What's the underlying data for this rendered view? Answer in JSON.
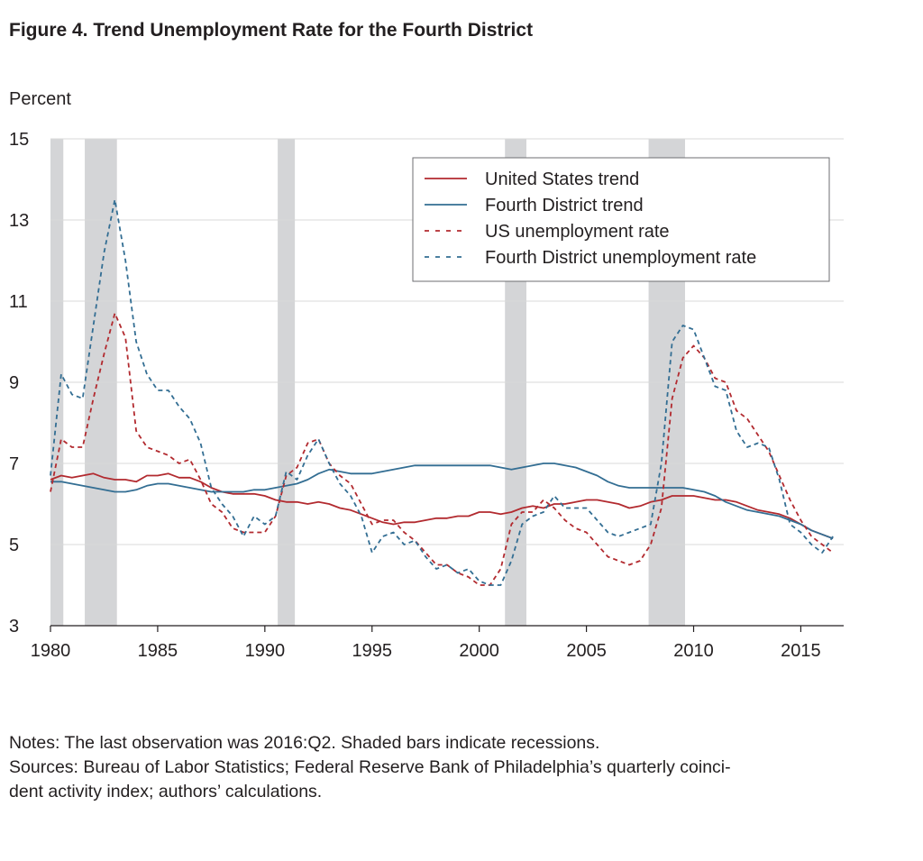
{
  "title": "Figure 4. Trend Unemployment Rate for the Fourth District",
  "notes": [
    "Notes: The last observation was 2016:Q2. Shaded bars indicate recessions.",
    "Sources: Bureau of Labor Statistics; Federal Reserve Bank of Philadelphia’s quarterly coinci-",
    "dent activity index; authors’ calculations."
  ],
  "colors": {
    "us": "#b22a2f",
    "fd": "#336e93",
    "recession": "#d4d5d7",
    "grid": "#d9d9d9"
  },
  "chart_data": {
    "type": "line",
    "ylabel": "Percent",
    "xlim": [
      1980,
      2017
    ],
    "ylim": [
      3,
      15
    ],
    "x_ticks": [
      1980,
      1985,
      1990,
      1995,
      2000,
      2005,
      2010,
      2015
    ],
    "y_ticks": [
      3,
      5,
      7,
      9,
      11,
      13,
      15
    ],
    "grid": true,
    "legend_position": "top-right",
    "recessions": [
      [
        1980.0,
        1980.6
      ],
      [
        1981.6,
        1983.1
      ],
      [
        1990.6,
        1991.4
      ],
      [
        2001.2,
        2002.2
      ],
      [
        2007.9,
        2009.6
      ]
    ],
    "series": [
      {
        "name": "United States trend",
        "style": "solid",
        "color": "us",
        "x": [
          1980.0,
          1980.5,
          1981.0,
          1981.5,
          1982.0,
          1982.5,
          1983.0,
          1983.5,
          1984.0,
          1984.5,
          1985.0,
          1985.5,
          1986.0,
          1986.5,
          1987.0,
          1987.5,
          1988.0,
          1988.5,
          1989.0,
          1989.5,
          1990.0,
          1990.5,
          1991.0,
          1991.5,
          1992.0,
          1992.5,
          1993.0,
          1993.5,
          1994.0,
          1994.5,
          1995.0,
          1995.5,
          1996.0,
          1996.5,
          1997.0,
          1997.5,
          1998.0,
          1998.5,
          1999.0,
          1999.5,
          2000.0,
          2000.5,
          2001.0,
          2001.5,
          2002.0,
          2002.5,
          2003.0,
          2003.5,
          2004.0,
          2004.5,
          2005.0,
          2005.5,
          2006.0,
          2006.5,
          2007.0,
          2007.5,
          2008.0,
          2008.5,
          2009.0,
          2009.5,
          2010.0,
          2010.5,
          2011.0,
          2011.5,
          2012.0,
          2012.5,
          2013.0,
          2013.5,
          2014.0,
          2014.5,
          2015.0,
          2015.5,
          2016.0,
          2016.5
        ],
        "y": [
          6.6,
          6.7,
          6.65,
          6.7,
          6.75,
          6.65,
          6.6,
          6.6,
          6.55,
          6.7,
          6.7,
          6.75,
          6.65,
          6.65,
          6.55,
          6.4,
          6.3,
          6.25,
          6.25,
          6.25,
          6.2,
          6.1,
          6.05,
          6.05,
          6.0,
          6.05,
          6.0,
          5.9,
          5.85,
          5.75,
          5.65,
          5.55,
          5.5,
          5.55,
          5.55,
          5.6,
          5.65,
          5.65,
          5.7,
          5.7,
          5.8,
          5.8,
          5.75,
          5.8,
          5.9,
          5.95,
          5.9,
          6.0,
          6.0,
          6.05,
          6.1,
          6.1,
          6.05,
          6.0,
          5.9,
          5.95,
          6.05,
          6.1,
          6.2,
          6.2,
          6.2,
          6.15,
          6.1,
          6.1,
          6.05,
          5.95,
          5.85,
          5.8,
          5.75,
          5.65,
          5.5,
          5.35,
          5.25,
          5.15
        ]
      },
      {
        "name": "Fourth District trend",
        "style": "solid",
        "color": "fd",
        "x": [
          1980.0,
          1980.5,
          1981.0,
          1981.5,
          1982.0,
          1982.5,
          1983.0,
          1983.5,
          1984.0,
          1984.5,
          1985.0,
          1985.5,
          1986.0,
          1986.5,
          1987.0,
          1987.5,
          1988.0,
          1988.5,
          1989.0,
          1989.5,
          1990.0,
          1990.5,
          1991.0,
          1991.5,
          1992.0,
          1992.5,
          1993.0,
          1993.5,
          1994.0,
          1994.5,
          1995.0,
          1995.5,
          1996.0,
          1996.5,
          1997.0,
          1997.5,
          1998.0,
          1998.5,
          1999.0,
          1999.5,
          2000.0,
          2000.5,
          2001.0,
          2001.5,
          2002.0,
          2002.5,
          2003.0,
          2003.5,
          2004.0,
          2004.5,
          2005.0,
          2005.5,
          2006.0,
          2006.5,
          2007.0,
          2007.5,
          2008.0,
          2008.5,
          2009.0,
          2009.5,
          2010.0,
          2010.5,
          2011.0,
          2011.5,
          2012.0,
          2012.5,
          2013.0,
          2013.5,
          2014.0,
          2014.5,
          2015.0,
          2015.5,
          2016.0,
          2016.5
        ],
        "y": [
          6.55,
          6.55,
          6.5,
          6.45,
          6.4,
          6.35,
          6.3,
          6.3,
          6.35,
          6.45,
          6.5,
          6.5,
          6.45,
          6.4,
          6.35,
          6.3,
          6.3,
          6.3,
          6.3,
          6.35,
          6.35,
          6.4,
          6.45,
          6.5,
          6.6,
          6.75,
          6.85,
          6.8,
          6.75,
          6.75,
          6.75,
          6.8,
          6.85,
          6.9,
          6.95,
          6.95,
          6.95,
          6.95,
          6.95,
          6.95,
          6.95,
          6.95,
          6.9,
          6.85,
          6.9,
          6.95,
          7.0,
          7.0,
          6.95,
          6.9,
          6.8,
          6.7,
          6.55,
          6.45,
          6.4,
          6.4,
          6.4,
          6.4,
          6.4,
          6.4,
          6.35,
          6.3,
          6.2,
          6.05,
          5.95,
          5.85,
          5.8,
          5.75,
          5.7,
          5.6,
          5.5,
          5.35,
          5.25,
          5.15
        ]
      },
      {
        "name": "US unemployment rate",
        "style": "dashed",
        "color": "us",
        "x": [
          1980.0,
          1980.5,
          1981.0,
          1981.5,
          1982.0,
          1982.5,
          1983.0,
          1983.5,
          1984.0,
          1984.5,
          1985.0,
          1985.5,
          1986.0,
          1986.5,
          1987.0,
          1987.5,
          1988.0,
          1988.5,
          1989.0,
          1989.5,
          1990.0,
          1990.5,
          1991.0,
          1991.5,
          1992.0,
          1992.5,
          1993.0,
          1993.5,
          1994.0,
          1994.5,
          1995.0,
          1995.5,
          1996.0,
          1996.5,
          1997.0,
          1997.5,
          1998.0,
          1998.5,
          1999.0,
          1999.5,
          2000.0,
          2000.5,
          2001.0,
          2001.5,
          2002.0,
          2002.5,
          2003.0,
          2003.5,
          2004.0,
          2004.5,
          2005.0,
          2005.5,
          2006.0,
          2006.5,
          2007.0,
          2007.5,
          2008.0,
          2008.5,
          2009.0,
          2009.5,
          2010.0,
          2010.5,
          2011.0,
          2011.5,
          2012.0,
          2012.5,
          2013.0,
          2013.5,
          2014.0,
          2014.5,
          2015.0,
          2015.5,
          2016.0,
          2016.5
        ],
        "y": [
          6.3,
          7.6,
          7.4,
          7.4,
          8.6,
          9.7,
          10.7,
          10.1,
          7.8,
          7.4,
          7.3,
          7.2,
          7.0,
          7.1,
          6.6,
          6.0,
          5.8,
          5.4,
          5.3,
          5.3,
          5.3,
          5.7,
          6.7,
          6.9,
          7.5,
          7.6,
          7.0,
          6.7,
          6.5,
          6.0,
          5.5,
          5.6,
          5.6,
          5.3,
          5.1,
          4.8,
          4.5,
          4.5,
          4.3,
          4.2,
          4.0,
          4.0,
          4.4,
          5.5,
          5.8,
          5.8,
          6.1,
          5.9,
          5.6,
          5.4,
          5.3,
          5.0,
          4.7,
          4.6,
          4.5,
          4.6,
          5.0,
          5.9,
          8.6,
          9.6,
          9.9,
          9.6,
          9.1,
          9.0,
          8.3,
          8.1,
          7.7,
          7.3,
          6.7,
          6.1,
          5.6,
          5.2,
          5.0,
          4.8
        ]
      },
      {
        "name": "Fourth District unemployment rate",
        "style": "dashed",
        "color": "fd",
        "x": [
          1980.0,
          1980.5,
          1981.0,
          1981.5,
          1982.0,
          1982.5,
          1983.0,
          1983.5,
          1984.0,
          1984.5,
          1985.0,
          1985.5,
          1986.0,
          1986.5,
          1987.0,
          1987.5,
          1988.0,
          1988.5,
          1989.0,
          1989.5,
          1990.0,
          1990.5,
          1991.0,
          1991.5,
          1992.0,
          1992.5,
          1993.0,
          1993.5,
          1994.0,
          1994.5,
          1995.0,
          1995.5,
          1996.0,
          1996.5,
          1997.0,
          1997.5,
          1998.0,
          1998.5,
          1999.0,
          1999.5,
          2000.0,
          2000.5,
          2001.0,
          2001.5,
          2002.0,
          2002.5,
          2003.0,
          2003.5,
          2004.0,
          2004.5,
          2005.0,
          2005.5,
          2006.0,
          2006.5,
          2007.0,
          2007.5,
          2008.0,
          2008.5,
          2009.0,
          2009.5,
          2010.0,
          2010.5,
          2011.0,
          2011.5,
          2012.0,
          2012.5,
          2013.0,
          2013.5,
          2014.0,
          2014.5,
          2015.0,
          2015.5,
          2016.0,
          2016.5
        ],
        "y": [
          6.7,
          9.2,
          8.7,
          8.6,
          10.4,
          12.2,
          13.5,
          12.0,
          10.0,
          9.2,
          8.8,
          8.8,
          8.4,
          8.1,
          7.5,
          6.4,
          6.0,
          5.7,
          5.2,
          5.7,
          5.5,
          5.7,
          6.8,
          6.6,
          7.2,
          7.6,
          7.0,
          6.5,
          6.2,
          5.7,
          4.8,
          5.2,
          5.3,
          5.0,
          5.1,
          4.7,
          4.4,
          4.5,
          4.3,
          4.4,
          4.1,
          4.0,
          4.0,
          4.6,
          5.5,
          5.7,
          5.8,
          6.2,
          5.9,
          5.9,
          5.9,
          5.6,
          5.3,
          5.2,
          5.3,
          5.4,
          5.5,
          7.0,
          10.0,
          10.4,
          10.3,
          9.6,
          8.9,
          8.8,
          7.8,
          7.4,
          7.5,
          7.4,
          6.6,
          5.5,
          5.3,
          5.0,
          4.8,
          5.2
        ]
      }
    ]
  }
}
